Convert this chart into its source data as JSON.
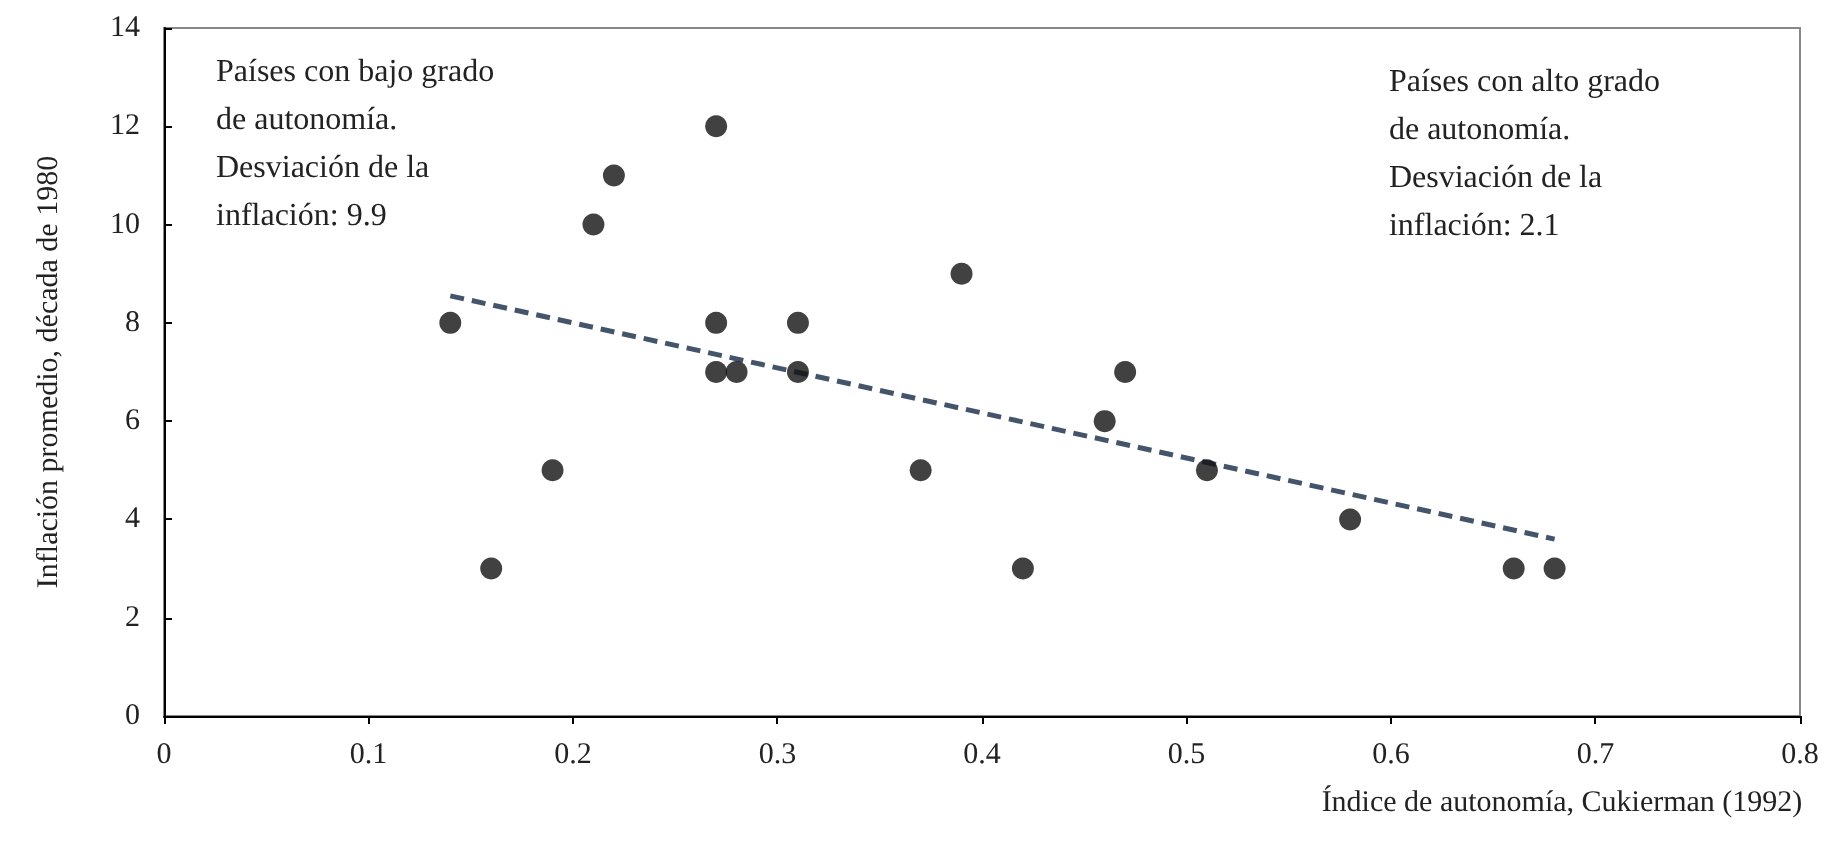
{
  "chart_data": {
    "type": "scatter",
    "xlabel": "Índice de autonomía, Cukierman (1992)",
    "ylabel": "Inflación promedio, década de 1980",
    "annotations": [
      "Países con bajo grado\nde autonomía.\nDesviación de la\ninflación: 9.9",
      "Países con alto grado\nde autonomía.\nDesviación de la\ninflación: 2.1"
    ],
    "xlim": [
      0,
      0.8
    ],
    "xticks": [
      0,
      0.1,
      0.2,
      0.3,
      0.4,
      0.5,
      0.6,
      0.7,
      0.8
    ],
    "ylim": [
      0,
      14
    ],
    "yticks": [
      0,
      2,
      4,
      6,
      8,
      10,
      12,
      14
    ],
    "grid": false,
    "marker": "circle",
    "series": [
      {
        "color": "#111111",
        "x": [
          0.14,
          0.16,
          0.19,
          0.21,
          0.22,
          0.27,
          0.27,
          0.27,
          0.28,
          0.31,
          0.31,
          0.37,
          0.39,
          0.42,
          0.46,
          0.47,
          0.51,
          0.58,
          0.66,
          0.68
        ],
        "values": [
          8,
          3,
          5,
          10,
          11,
          12,
          8,
          7,
          7,
          8,
          7,
          5,
          9,
          3,
          6,
          7,
          5,
          4,
          3,
          3
        ]
      },
      {
        "type": "line",
        "color": "#44546a",
        "line_style": "dashed",
        "marker": "none",
        "x": [
          0.14,
          0.68
        ],
        "values": [
          8.55,
          3.6
        ]
      }
    ]
  }
}
